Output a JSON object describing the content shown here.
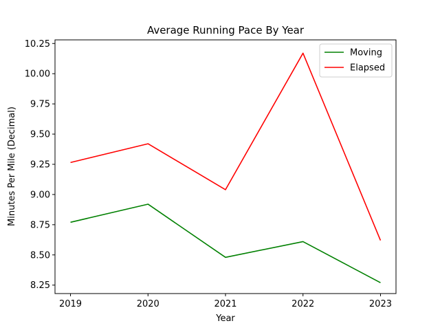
{
  "chart_data": {
    "type": "line",
    "title": "Average Running Pace By Year",
    "xlabel": "Year",
    "ylabel": "Minutes Per Mile (Decimal)",
    "x": [
      2019,
      2020,
      2021,
      2022,
      2023
    ],
    "x_tick_labels": [
      "2019",
      "2020",
      "2021",
      "2022",
      "2023"
    ],
    "ylim": [
      8.18,
      10.28
    ],
    "y_ticks": [
      8.25,
      8.5,
      8.75,
      9.0,
      9.25,
      9.5,
      9.75,
      10.0,
      10.25
    ],
    "y_tick_labels": [
      "8.25",
      "8.50",
      "8.75",
      "9.00",
      "9.25",
      "9.50",
      "9.75",
      "10.00",
      "10.25"
    ],
    "grid": false,
    "legend_position": "top-right",
    "series": [
      {
        "name": "Moving",
        "color": "#008000",
        "values": [
          8.77,
          8.92,
          8.48,
          8.61,
          8.27
        ]
      },
      {
        "name": "Elapsed",
        "color": "#ff0000",
        "values": [
          9.265,
          9.42,
          9.04,
          10.17,
          8.62
        ]
      }
    ]
  }
}
